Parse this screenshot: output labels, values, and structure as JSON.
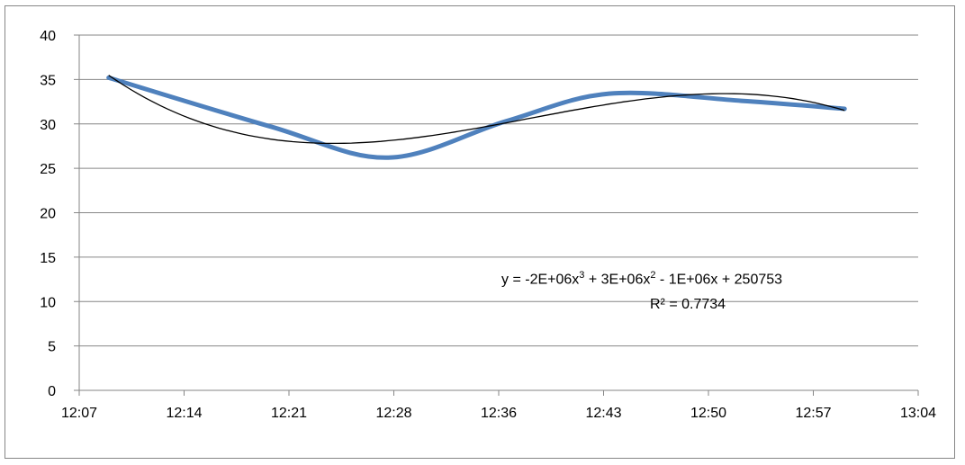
{
  "chart_data": {
    "type": "line",
    "title": "",
    "xlabel": "",
    "ylabel": "",
    "x_ticks": [
      "12:07",
      "12:14",
      "12:21",
      "12:28",
      "12:36",
      "12:43",
      "12:50",
      "12:57",
      "13:04"
    ],
    "x_range": [
      "12:07",
      "13:04"
    ],
    "ylim": [
      0,
      40
    ],
    "y_ticks": [
      0,
      5,
      10,
      15,
      20,
      25,
      30,
      35,
      40
    ],
    "grid": true,
    "legend": "none",
    "series": [
      {
        "color": "#4f81bd",
        "smooth": true,
        "points": [
          {
            "x": "12:09",
            "y": 35.2
          },
          {
            "x": "12:20",
            "y": 29.7
          },
          {
            "x": "12:28",
            "y": 26.2
          },
          {
            "x": "12:36",
            "y": 30.3
          },
          {
            "x": "12:43",
            "y": 33.4
          },
          {
            "x": "12:52",
            "y": 32.6
          },
          {
            "x": "12:59",
            "y": 31.7
          }
        ]
      }
    ],
    "trendline": {
      "type": "polynomial",
      "order": 3,
      "color": "#000000",
      "equation_prefix": "y = -2E+06x",
      "equation_sup1": "3",
      "equation_mid": " + 3E+06x",
      "equation_sup2": "2",
      "equation_suffix": " - 1E+06x + 250753",
      "r_squared": "R² = 0.7734"
    }
  }
}
